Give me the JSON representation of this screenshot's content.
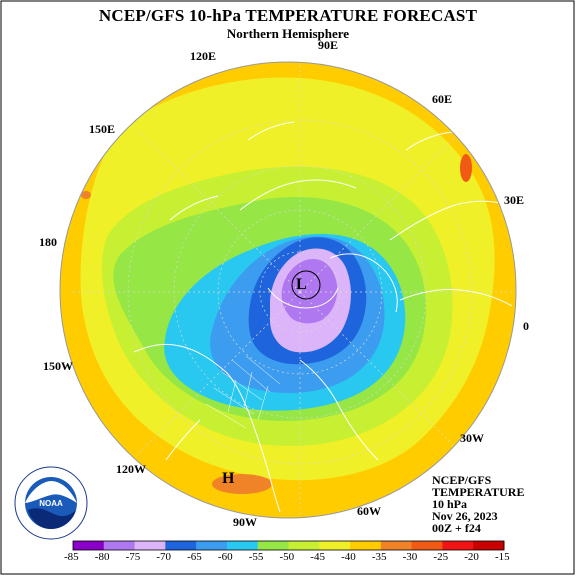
{
  "header": {
    "title": "NCEP/GFS 10-hPa TEMPERATURE FORECAST",
    "subtitle": "Northern Hemisphere"
  },
  "map": {
    "projection": "north polar stereographic",
    "longitude_labels": {
      "e90": "90E",
      "e120": "120E",
      "e60": "60E",
      "e150": "150E",
      "e30": "30E",
      "d180": "180",
      "d0": "0",
      "w150": "150W",
      "w30": "30W",
      "w120": "120W",
      "w60": "60W",
      "w90": "90W"
    },
    "low_marker": "L",
    "high_marker": "H",
    "fill_color_background": "#ffcc00"
  },
  "info_box": {
    "model": "NCEP/GFS",
    "field": "TEMPERATURE",
    "level": "10 hPa",
    "date": "Nov 26, 2023",
    "run": "00Z + f24"
  },
  "colorbar": {
    "ticks": [
      "-85",
      "-80",
      "-75",
      "-70",
      "-65",
      "-60",
      "-55",
      "-50",
      "-45",
      "-40",
      "-35",
      "-30",
      "-25",
      "-20",
      "-15"
    ],
    "colors": [
      "#8a00c8",
      "#b078f0",
      "#dcb4fa",
      "#1e64dc",
      "#3c9cf0",
      "#28c8f0",
      "#96e646",
      "#c8f032",
      "#f0f028",
      "#ffcc00",
      "#f08228",
      "#f05a14",
      "#f01414",
      "#c80000"
    ]
  },
  "logo": {
    "text": "NOAA",
    "ring_text": "NATIONAL OCEANIC AND ATMOSPHERIC ADMINISTRATION U.S. DEPARTMENT OF COMMERCE"
  }
}
